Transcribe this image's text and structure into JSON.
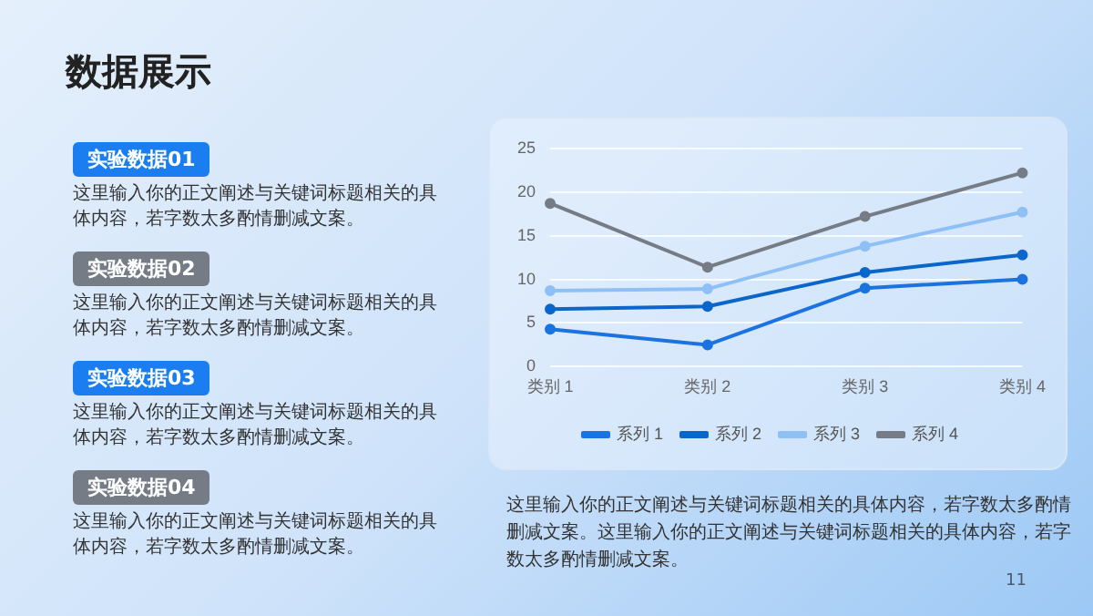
{
  "chart_data": {
    "type": "line",
    "title": "数据展示",
    "categories": [
      "类别 1",
      "类别 2",
      "类别 3",
      "类别 4"
    ],
    "series": [
      {
        "name": "系列 1",
        "color": "#1a73e0",
        "values": [
          4.3,
          2.5,
          9.0,
          10.0
        ]
      },
      {
        "name": "系列 2",
        "color": "#0b66cc",
        "values": [
          6.6,
          6.9,
          10.8,
          12.8
        ]
      },
      {
        "name": "系列 3",
        "color": "#8fc0f5",
        "values": [
          8.7,
          8.9,
          13.8,
          17.7
        ]
      },
      {
        "name": "系列 4",
        "color": "#767c86",
        "values": [
          18.7,
          11.4,
          17.2,
          22.2
        ]
      }
    ],
    "ylim": [
      0,
      25
    ],
    "yticks": [
      0,
      5,
      10,
      15,
      20,
      25
    ],
    "grid": "y",
    "legend": "bottom",
    "marker": "circle",
    "line_style": "solid",
    "annotations": [
      "实验数据01",
      "这里输入你的正文阐述与关键词标题相关的具体内容，若字数太多酌情删减文案。",
      "实验数据02",
      "这里输入你的正文阐述与关键词标题相关的具体内容，若字数太多酌情删减文案。",
      "实验数据03",
      "这里输入你的正文阐述与关键词标题相关的具体内容，若字数太多酌情删减文案。",
      "实验数据04",
      "这里输入你的正文阐述与关键词标题相关的具体内容，若字数太多酌情删减文案。",
      "这里输入你的正文阐述与关键词标题相关的具体内容，若字数太多酌情删减文案。这里输入你的正文阐述与关键词标题相关的具体内容，若字数太多酌情删减文案。",
      "11"
    ]
  }
}
